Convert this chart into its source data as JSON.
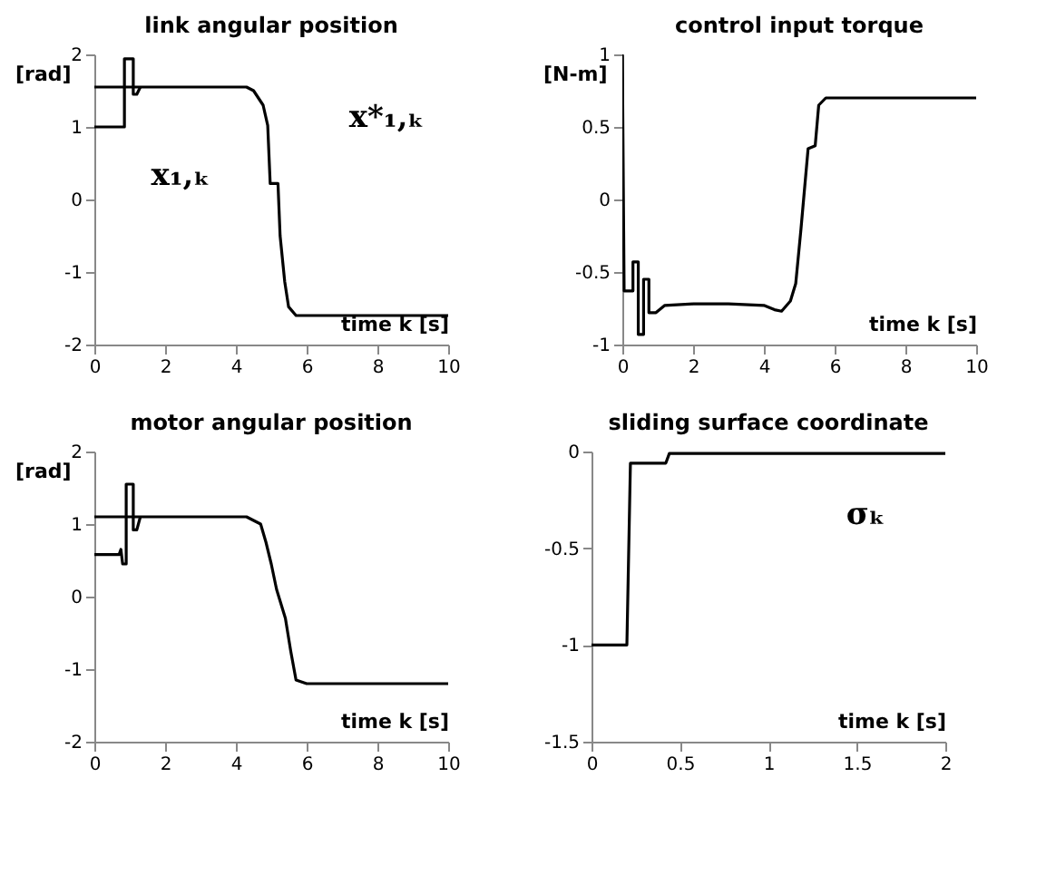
{
  "chart_data": [
    {
      "type": "line",
      "title": "link angular position",
      "xlabel": "time k [s]",
      "ylabel": "[rad]",
      "xlim": [
        0,
        10
      ],
      "ylim": [
        -2,
        2
      ],
      "xticks": [
        0,
        2,
        4,
        6,
        8,
        10
      ],
      "yticks": [
        -2,
        -1,
        0,
        1,
        2
      ],
      "grid": false,
      "marker": "none",
      "series": [
        {
          "name": "x₁,ₖ",
          "color": "#000000",
          "x": [
            0,
            0.85,
            0.85,
            1.1,
            1.1,
            1.2,
            1.3
          ],
          "values": [
            1,
            1,
            1.94,
            1.94,
            1.45,
            1.45,
            1.55
          ]
        },
        {
          "name": "x*₁,ₖ",
          "color": "#000000",
          "x": [
            0,
            4.3,
            4.5,
            4.77,
            4.9,
            4.97,
            5.19,
            5.25,
            5.38,
            5.49,
            5.7,
            10
          ],
          "values": [
            1.55,
            1.55,
            1.5,
            1.3,
            1.02,
            0.22,
            0.22,
            -0.5,
            -1.13,
            -1.48,
            -1.6,
            -1.6
          ]
        }
      ]
    },
    {
      "type": "line",
      "title": "control input torque",
      "xlabel": "time k [s]",
      "ylabel": "[N-m]",
      "xlim": [
        0,
        10
      ],
      "ylim": [
        -1,
        1
      ],
      "xticks": [
        0,
        2,
        4,
        6,
        8,
        10
      ],
      "yticks": [
        -1,
        -0.5,
        0,
        0.5,
        1
      ],
      "grid": false,
      "marker": "none",
      "series": [
        {
          "color": "#000000",
          "x": [
            0,
            0.05,
            0.3,
            0.3,
            0.45,
            0.45,
            0.6,
            0.6,
            0.75,
            0.75,
            0.95,
            1.2,
            2,
            3,
            4,
            4.3,
            4.5,
            4.75,
            4.9,
            5.05,
            5.25,
            5.45,
            5.55,
            5.75,
            10
          ],
          "values": [
            1,
            -0.63,
            -0.63,
            -0.43,
            -0.43,
            -0.93,
            -0.93,
            -0.55,
            -0.55,
            -0.78,
            -0.78,
            -0.73,
            -0.72,
            -0.72,
            -0.73,
            -0.76,
            -0.77,
            -0.7,
            -0.58,
            -0.2,
            0.35,
            0.37,
            0.65,
            0.7,
            0.7
          ]
        }
      ]
    },
    {
      "type": "line",
      "title": "motor angular position",
      "xlabel": "time k [s]",
      "ylabel": "[rad]",
      "xlim": [
        0,
        10
      ],
      "ylim": [
        -2,
        2
      ],
      "xticks": [
        0,
        2,
        4,
        6,
        8,
        10
      ],
      "yticks": [
        -2,
        -1,
        0,
        1,
        2
      ],
      "grid": false,
      "marker": "none",
      "series": [
        {
          "color": "#000000",
          "x": [
            0,
            0.7,
            0.75,
            0.8,
            0.9,
            0.9,
            1.1,
            1.1,
            1.2,
            1.3
          ],
          "values": [
            0.58,
            0.58,
            0.65,
            0.45,
            0.45,
            1.55,
            1.55,
            0.92,
            0.92,
            1.1
          ]
        },
        {
          "color": "#000000",
          "x": [
            0,
            4.3,
            4.7,
            4.85,
            5.0,
            5.15,
            5.4,
            5.55,
            5.7,
            6,
            10
          ],
          "values": [
            1.1,
            1.1,
            1.0,
            0.75,
            0.45,
            0.1,
            -0.3,
            -0.75,
            -1.15,
            -1.2,
            -1.2
          ]
        }
      ]
    },
    {
      "type": "line",
      "title": "sliding surface coordinate",
      "xlabel": "time k [s]",
      "xlim": [
        0,
        2
      ],
      "ylim": [
        -1.5,
        0
      ],
      "xticks": [
        0,
        0.5,
        1,
        1.5,
        2
      ],
      "yticks": [
        -1.5,
        -1,
        -0.5,
        0
      ],
      "grid": false,
      "marker": "none",
      "series": [
        {
          "name": "σₖ",
          "color": "#000000",
          "x": [
            0,
            0.2,
            0.22,
            0.42,
            0.44,
            2
          ],
          "values": [
            -1,
            -1,
            -0.06,
            -0.06,
            -0.01,
            -0.01
          ]
        }
      ]
    }
  ]
}
